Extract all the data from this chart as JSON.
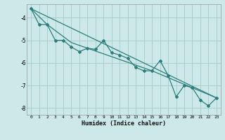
{
  "xlabel": "Humidex (Indice chaleur)",
  "background_color": "#cce8e8",
  "grid_color": "#aacfcf",
  "line_color": "#2d7d7d",
  "xlim": [
    -0.5,
    23.5
  ],
  "ylim": [
    -8.3,
    -3.4
  ],
  "yticks": [
    -8,
    -7,
    -6,
    -5,
    -4
  ],
  "xticks": [
    0,
    1,
    2,
    3,
    4,
    5,
    6,
    7,
    8,
    9,
    10,
    11,
    12,
    13,
    14,
    15,
    16,
    17,
    18,
    19,
    20,
    21,
    22,
    23
  ],
  "series": [
    [
      0,
      -3.6
    ],
    [
      1,
      -4.3
    ],
    [
      2,
      -4.3
    ],
    [
      3,
      -5.0
    ],
    [
      4,
      -5.0
    ],
    [
      5,
      -5.3
    ],
    [
      6,
      -5.5
    ],
    [
      7,
      -5.35
    ],
    [
      8,
      -5.4
    ],
    [
      9,
      -5.0
    ],
    [
      10,
      -5.55
    ],
    [
      11,
      -5.65
    ],
    [
      12,
      -5.8
    ],
    [
      13,
      -6.2
    ],
    [
      14,
      -6.35
    ],
    [
      15,
      -6.35
    ],
    [
      16,
      -5.9
    ],
    [
      17,
      -6.55
    ],
    [
      18,
      -7.5
    ],
    [
      19,
      -7.0
    ],
    [
      20,
      -7.1
    ],
    [
      21,
      -7.65
    ],
    [
      22,
      -7.9
    ],
    [
      23,
      -7.55
    ]
  ],
  "line2": [
    [
      0,
      -3.6
    ],
    [
      2,
      -4.3
    ],
    [
      5,
      -5.1
    ],
    [
      15,
      -6.35
    ],
    [
      23,
      -7.55
    ]
  ],
  "line3": [
    [
      0,
      -3.6
    ],
    [
      23,
      -7.55
    ]
  ]
}
